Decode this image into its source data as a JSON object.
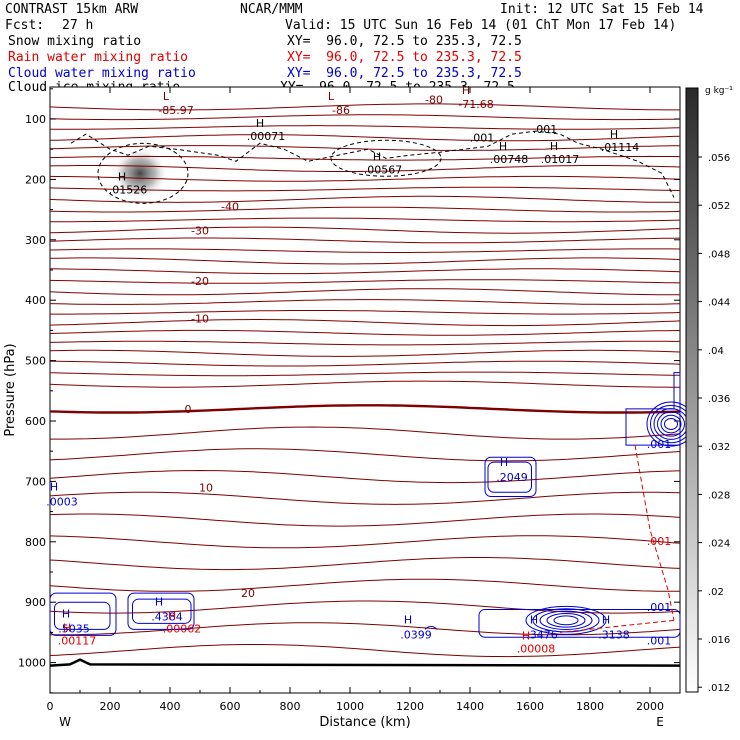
{
  "header": {
    "model": "CONTRAST 15km ARW",
    "org": "NCAR/MMM",
    "init": "Init: 12 UTC Sat 15 Feb 14",
    "fcst_label": "Fcst:",
    "fcst_value": "27 h",
    "valid": "Valid: 15 UTC Sun 16 Feb 14 (01 ChT Mon 17 Feb 14)",
    "fields": [
      {
        "name": "Snow mixing ratio",
        "xy": "XY=  96.0, 72.5 to 235.3, 72.5",
        "color": "#000000"
      },
      {
        "name": "Rain water mixing ratio",
        "xy": "XY=  96.0, 72.5 to 235.3, 72.5",
        "color": "#e00000"
      },
      {
        "name": "Cloud water mixing ratio",
        "xy": "XY=  96.0, 72.5 to 235.3, 72.5",
        "color": "#0000d0"
      },
      {
        "name": "Cloud ice mixing ratio",
        "xy": "XY=  96.0, 72.5 to 235.3, 72.5",
        "color": "#000000"
      }
    ]
  },
  "chart_data": {
    "type": "cross-section contour",
    "xlabel": "Distance (km)",
    "ylabel": "Pressure (hPa)",
    "xlim": [
      0,
      2100
    ],
    "ylim": [
      1050,
      50
    ],
    "x_ticks": [
      0,
      200,
      400,
      600,
      800,
      1000,
      1200,
      1400,
      1600,
      1800,
      2000
    ],
    "y_ticks": [
      100,
      200,
      300,
      400,
      500,
      600,
      700,
      800,
      900,
      1000
    ],
    "x_end_labels": {
      "left": "W",
      "right": "E"
    },
    "temperature_contours": [
      {
        "level": "-80",
        "label_x": 1280,
        "label_p": 68
      },
      {
        "level": "-40",
        "label_x": 600,
        "label_p": 245
      },
      {
        "level": "-30",
        "label_x": 500,
        "label_p": 285
      },
      {
        "level": "-20",
        "label_x": 500,
        "label_p": 368
      },
      {
        "level": "-10",
        "label_x": 500,
        "label_p": 430
      },
      {
        "level": "0",
        "label_x": 460,
        "label_p": 580
      },
      {
        "level": "10",
        "label_x": 520,
        "label_p": 710
      },
      {
        "level": "20",
        "label_x": 660,
        "label_p": 885
      }
    ],
    "temperature_extrema": [
      {
        "type": "L",
        "value": "-85.97",
        "x": 420,
        "p": 72
      },
      {
        "type": "L",
        "value": "-86",
        "x": 970,
        "p": 72
      },
      {
        "type": "H",
        "value": "-71.68",
        "x": 1420,
        "p": 62
      }
    ],
    "snow_ice_labels": [
      {
        "type": "H",
        "value": ".00071",
        "x": 720,
        "p": 130
      },
      {
        "type": "H",
        "value": ".00567",
        "x": 1110,
        "p": 185
      },
      {
        "type": "H",
        "value": ".00748",
        "x": 1530,
        "p": 168
      },
      {
        "type": "H",
        "value": ".01017",
        "x": 1700,
        "p": 168
      },
      {
        "type": "H",
        "value": ".01114",
        "x": 1900,
        "p": 148
      },
      {
        "type": "H",
        "value": ".01526",
        "x": 260,
        "p": 218
      },
      {
        "type": "contour",
        "value": ".001",
        "x": 1440,
        "p": 132
      },
      {
        "type": "contour",
        "value": ".001",
        "x": 1650,
        "p": 118
      }
    ],
    "cloud_water_labels": [
      {
        "type": "H",
        "value": ".2049",
        "x": 1540,
        "p": 694
      },
      {
        "type": "H",
        "value": ".0003",
        "x": 40,
        "p": 735
      },
      {
        "type": "H",
        "value": ".5035",
        "x": 80,
        "p": 945
      },
      {
        "type": "H",
        "value": ".4384",
        "x": 390,
        "p": 925
      },
      {
        "type": "H",
        "value": ".0399",
        "x": 1220,
        "p": 955
      },
      {
        "type": "H",
        "value": ".3476",
        "x": 1640,
        "p": 955
      },
      {
        "type": "H",
        "value": ".3138",
        "x": 1880,
        "p": 955
      },
      {
        "type": "contour",
        "value": ".001",
        "x": 2030,
        "p": 640
      },
      {
        "type": "contour",
        "value": ".001",
        "x": 2030,
        "p": 910
      },
      {
        "type": "contour",
        "value": ".001",
        "x": 2030,
        "p": 965
      }
    ],
    "rain_labels": [
      {
        "type": "H",
        "value": ".00117",
        "x": 90,
        "p": 965
      },
      {
        "type": "H",
        "value": ".00062",
        "x": 440,
        "p": 945
      },
      {
        "type": "H",
        "value": ".00008",
        "x": 1620,
        "p": 978
      },
      {
        "type": "contour",
        "value": ".001",
        "x": 2030,
        "p": 800
      }
    ],
    "colorbar": {
      "unit": "g kg⁻¹",
      "ticks": [
        ".012",
        ".016",
        ".02",
        ".024",
        ".028",
        ".032",
        ".036",
        ".04",
        ".044",
        ".048",
        ".052",
        ".056"
      ],
      "color_low": "#ffffff",
      "color_high": "#2a2a2a"
    },
    "colors": {
      "temperature": "#800000",
      "snow_ice": "#000000",
      "cloud_water": "#0000d0",
      "rain": "#e00000"
    }
  }
}
